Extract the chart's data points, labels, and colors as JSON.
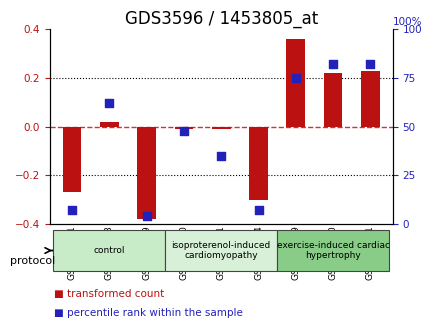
{
  "title": "GDS3596 / 1453805_at",
  "samples": [
    "GSM466341",
    "GSM466348",
    "GSM466349",
    "GSM466350",
    "GSM466351",
    "GSM466394",
    "GSM466399",
    "GSM466400",
    "GSM466401"
  ],
  "transformed_count": [
    -0.27,
    0.02,
    -0.38,
    -0.01,
    -0.01,
    -0.3,
    0.36,
    0.22,
    0.23
  ],
  "percentile_rank": [
    7,
    62,
    4,
    48,
    35,
    7,
    75,
    82,
    82
  ],
  "ylim_left": [
    -0.4,
    0.4
  ],
  "ylim_right": [
    0,
    100
  ],
  "yticks_left": [
    -0.4,
    -0.2,
    0.0,
    0.2,
    0.4
  ],
  "yticks_right": [
    0,
    25,
    50,
    75,
    100
  ],
  "groups": [
    {
      "label": "control",
      "start": 0,
      "end": 3,
      "color": "#c8ecc8"
    },
    {
      "label": "isoproterenol-induced\ncardiomyopathy",
      "start": 3,
      "end": 6,
      "color": "#d8f0d8"
    },
    {
      "label": "exercise-induced cardiac\nhypertrophy",
      "start": 6,
      "end": 9,
      "color": "#88cc88"
    }
  ],
  "bar_color": "#bb1111",
  "dot_color": "#2222bb",
  "bar_width": 0.5,
  "dot_size": 30,
  "zero_line_color": "#cc3333",
  "grid_color": "#000000",
  "bg_color": "#ffffff",
  "plot_bg": "#ffffff",
  "protocol_label": "protocol",
  "legend_items": [
    {
      "label": "transformed count",
      "color": "#bb1111"
    },
    {
      "label": "percentile rank within the sample",
      "color": "#2222bb"
    }
  ],
  "title_fontsize": 12,
  "tick_fontsize": 6.5,
  "label_fontsize": 7.5
}
